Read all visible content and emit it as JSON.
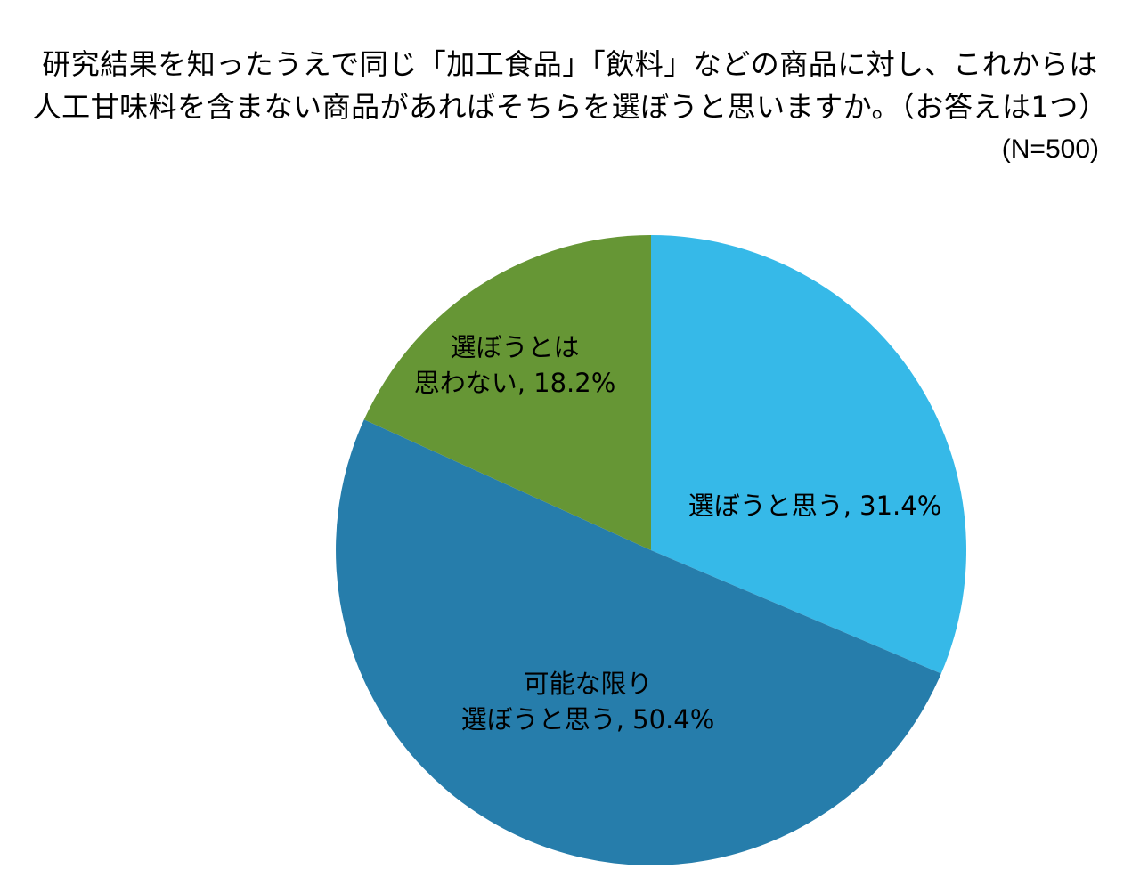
{
  "chart_data": {
    "type": "pie",
    "title": [
      "研究結果を知ったうえで同じ「加工食品」「飲料」などの商品に対し、これからは",
      "人工甘味料を含まない商品があればそちらを選ぼうと思いますか。（お答えは1つ）"
    ],
    "sample_size": "(N=500)",
    "slices": [
      {
        "label_lines": [
          "選ぼうと思う, 31.4%"
        ],
        "value": 31.4,
        "color": "#36B9E8"
      },
      {
        "label_lines": [
          "可能な限り",
          "選ぼうと思う, 50.4%"
        ],
        "value": 50.4,
        "color": "#267DAB"
      },
      {
        "label_lines": [
          "選ぼうとは",
          "思わない, 18.2%"
        ],
        "value": 18.2,
        "color": "#669635"
      }
    ],
    "start_angle": "12 o'clock",
    "direction": "clockwise",
    "legend": "none"
  }
}
